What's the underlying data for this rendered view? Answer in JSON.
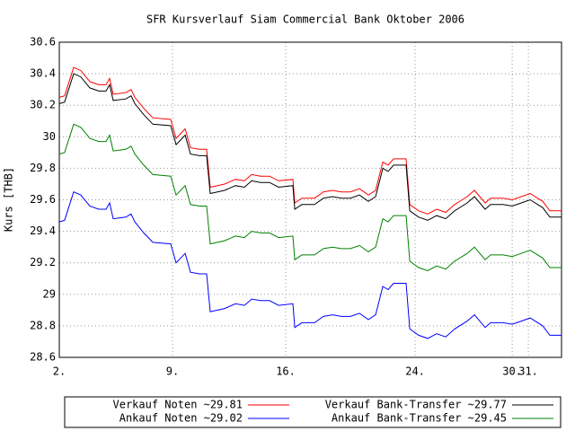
{
  "chart_data": {
    "type": "line",
    "title": "SFR Kursverlauf Siam Commercial Bank Oktober 2006",
    "y_label": "Kurs [THB]",
    "x": [
      2.0,
      2.33,
      2.89,
      3.33,
      3.89,
      4.44,
      4.89,
      5.11,
      5.33,
      6.11,
      6.44,
      6.67,
      7.22,
      7.78,
      8.89,
      9.22,
      9.78,
      10.11,
      10.67,
      11.11,
      11.33,
      12.22,
      12.89,
      13.44,
      13.89,
      14.44,
      15.0,
      15.56,
      16.44,
      16.56,
      17.0,
      17.78,
      18.33,
      18.89,
      19.44,
      20.0,
      20.56,
      21.11,
      21.56,
      22.0,
      22.33,
      22.67,
      23.44,
      23.67,
      24.22,
      24.78,
      25.33,
      25.89,
      26.44,
      27.22,
      27.67,
      28.33,
      28.67,
      29.44,
      30.0,
      30.56,
      31.11,
      31.89,
      32.33,
      33.05
    ],
    "series": [
      {
        "name": "Verkauf Noten ~29.81",
        "color": "#ff0000",
        "values": [
          30.25,
          30.26,
          30.44,
          30.42,
          30.35,
          30.33,
          30.33,
          30.37,
          30.27,
          30.28,
          30.3,
          30.25,
          30.18,
          30.12,
          30.11,
          29.99,
          30.05,
          29.93,
          29.92,
          29.92,
          29.68,
          29.7,
          29.73,
          29.72,
          29.76,
          29.75,
          29.75,
          29.72,
          29.73,
          29.58,
          29.61,
          29.61,
          29.65,
          29.66,
          29.65,
          29.65,
          29.67,
          29.63,
          29.66,
          29.84,
          29.82,
          29.86,
          29.86,
          29.57,
          29.53,
          29.51,
          29.54,
          29.52,
          29.57,
          29.62,
          29.66,
          29.58,
          29.61,
          29.61,
          29.6,
          29.62,
          29.64,
          29.59,
          29.53,
          29.53
        ]
      },
      {
        "name": "Verkauf Bank-Transfer ~29.77",
        "color": "#000000",
        "values": [
          30.21,
          30.22,
          30.4,
          30.38,
          30.31,
          30.29,
          30.29,
          30.33,
          30.23,
          30.24,
          30.26,
          30.21,
          30.14,
          30.08,
          30.07,
          29.95,
          30.01,
          29.89,
          29.88,
          29.88,
          29.64,
          29.66,
          29.69,
          29.68,
          29.72,
          29.71,
          29.71,
          29.68,
          29.69,
          29.54,
          29.57,
          29.57,
          29.61,
          29.62,
          29.61,
          29.61,
          29.63,
          29.59,
          29.62,
          29.8,
          29.78,
          29.82,
          29.82,
          29.53,
          29.49,
          29.47,
          29.5,
          29.48,
          29.53,
          29.58,
          29.62,
          29.54,
          29.57,
          29.57,
          29.56,
          29.58,
          29.6,
          29.55,
          29.49,
          29.49
        ]
      },
      {
        "name": "Ankauf Noten ~29.02",
        "color": "#0000ff",
        "values": [
          29.46,
          29.47,
          29.65,
          29.63,
          29.56,
          29.54,
          29.54,
          29.58,
          29.48,
          29.49,
          29.51,
          29.46,
          29.39,
          29.33,
          29.32,
          29.2,
          29.26,
          29.14,
          29.13,
          29.13,
          28.89,
          28.91,
          28.94,
          28.93,
          28.97,
          28.96,
          28.96,
          28.93,
          28.94,
          28.79,
          28.82,
          28.82,
          28.86,
          28.87,
          28.86,
          28.86,
          28.88,
          28.84,
          28.87,
          29.05,
          29.03,
          29.07,
          29.07,
          28.78,
          28.74,
          28.72,
          28.75,
          28.73,
          28.78,
          28.83,
          28.87,
          28.79,
          28.82,
          28.82,
          28.81,
          28.83,
          28.85,
          28.8,
          28.74,
          28.74
        ]
      },
      {
        "name": "Ankauf Bank-Transfer ~29.45",
        "color": "#008000",
        "values": [
          29.89,
          29.9,
          30.08,
          30.06,
          29.99,
          29.97,
          29.97,
          30.01,
          29.91,
          29.92,
          29.94,
          29.89,
          29.82,
          29.76,
          29.75,
          29.63,
          29.69,
          29.57,
          29.56,
          29.56,
          29.32,
          29.34,
          29.37,
          29.36,
          29.4,
          29.39,
          29.39,
          29.36,
          29.37,
          29.22,
          29.25,
          29.25,
          29.29,
          29.3,
          29.29,
          29.29,
          29.31,
          29.27,
          29.3,
          29.48,
          29.46,
          29.5,
          29.5,
          29.21,
          29.17,
          29.15,
          29.18,
          29.16,
          29.21,
          29.26,
          29.3,
          29.22,
          29.25,
          29.25,
          29.24,
          29.26,
          29.28,
          29.23,
          29.17,
          29.17
        ]
      }
    ],
    "xlim": [
      2,
      33.05
    ],
    "xticks": [
      {
        "value": 2,
        "label": "2."
      },
      {
        "value": 9,
        "label": "9."
      },
      {
        "value": 16,
        "label": "16."
      },
      {
        "value": 24,
        "label": "24."
      },
      {
        "value": 30,
        "label": "30."
      },
      {
        "value": 31,
        "label": "31."
      }
    ],
    "ylim": [
      28.6,
      30.6
    ],
    "yticks": [
      28.6,
      28.8,
      29,
      29.2,
      29.4,
      29.6,
      29.8,
      30,
      30.2,
      30.4,
      30.6
    ],
    "grid": true
  }
}
